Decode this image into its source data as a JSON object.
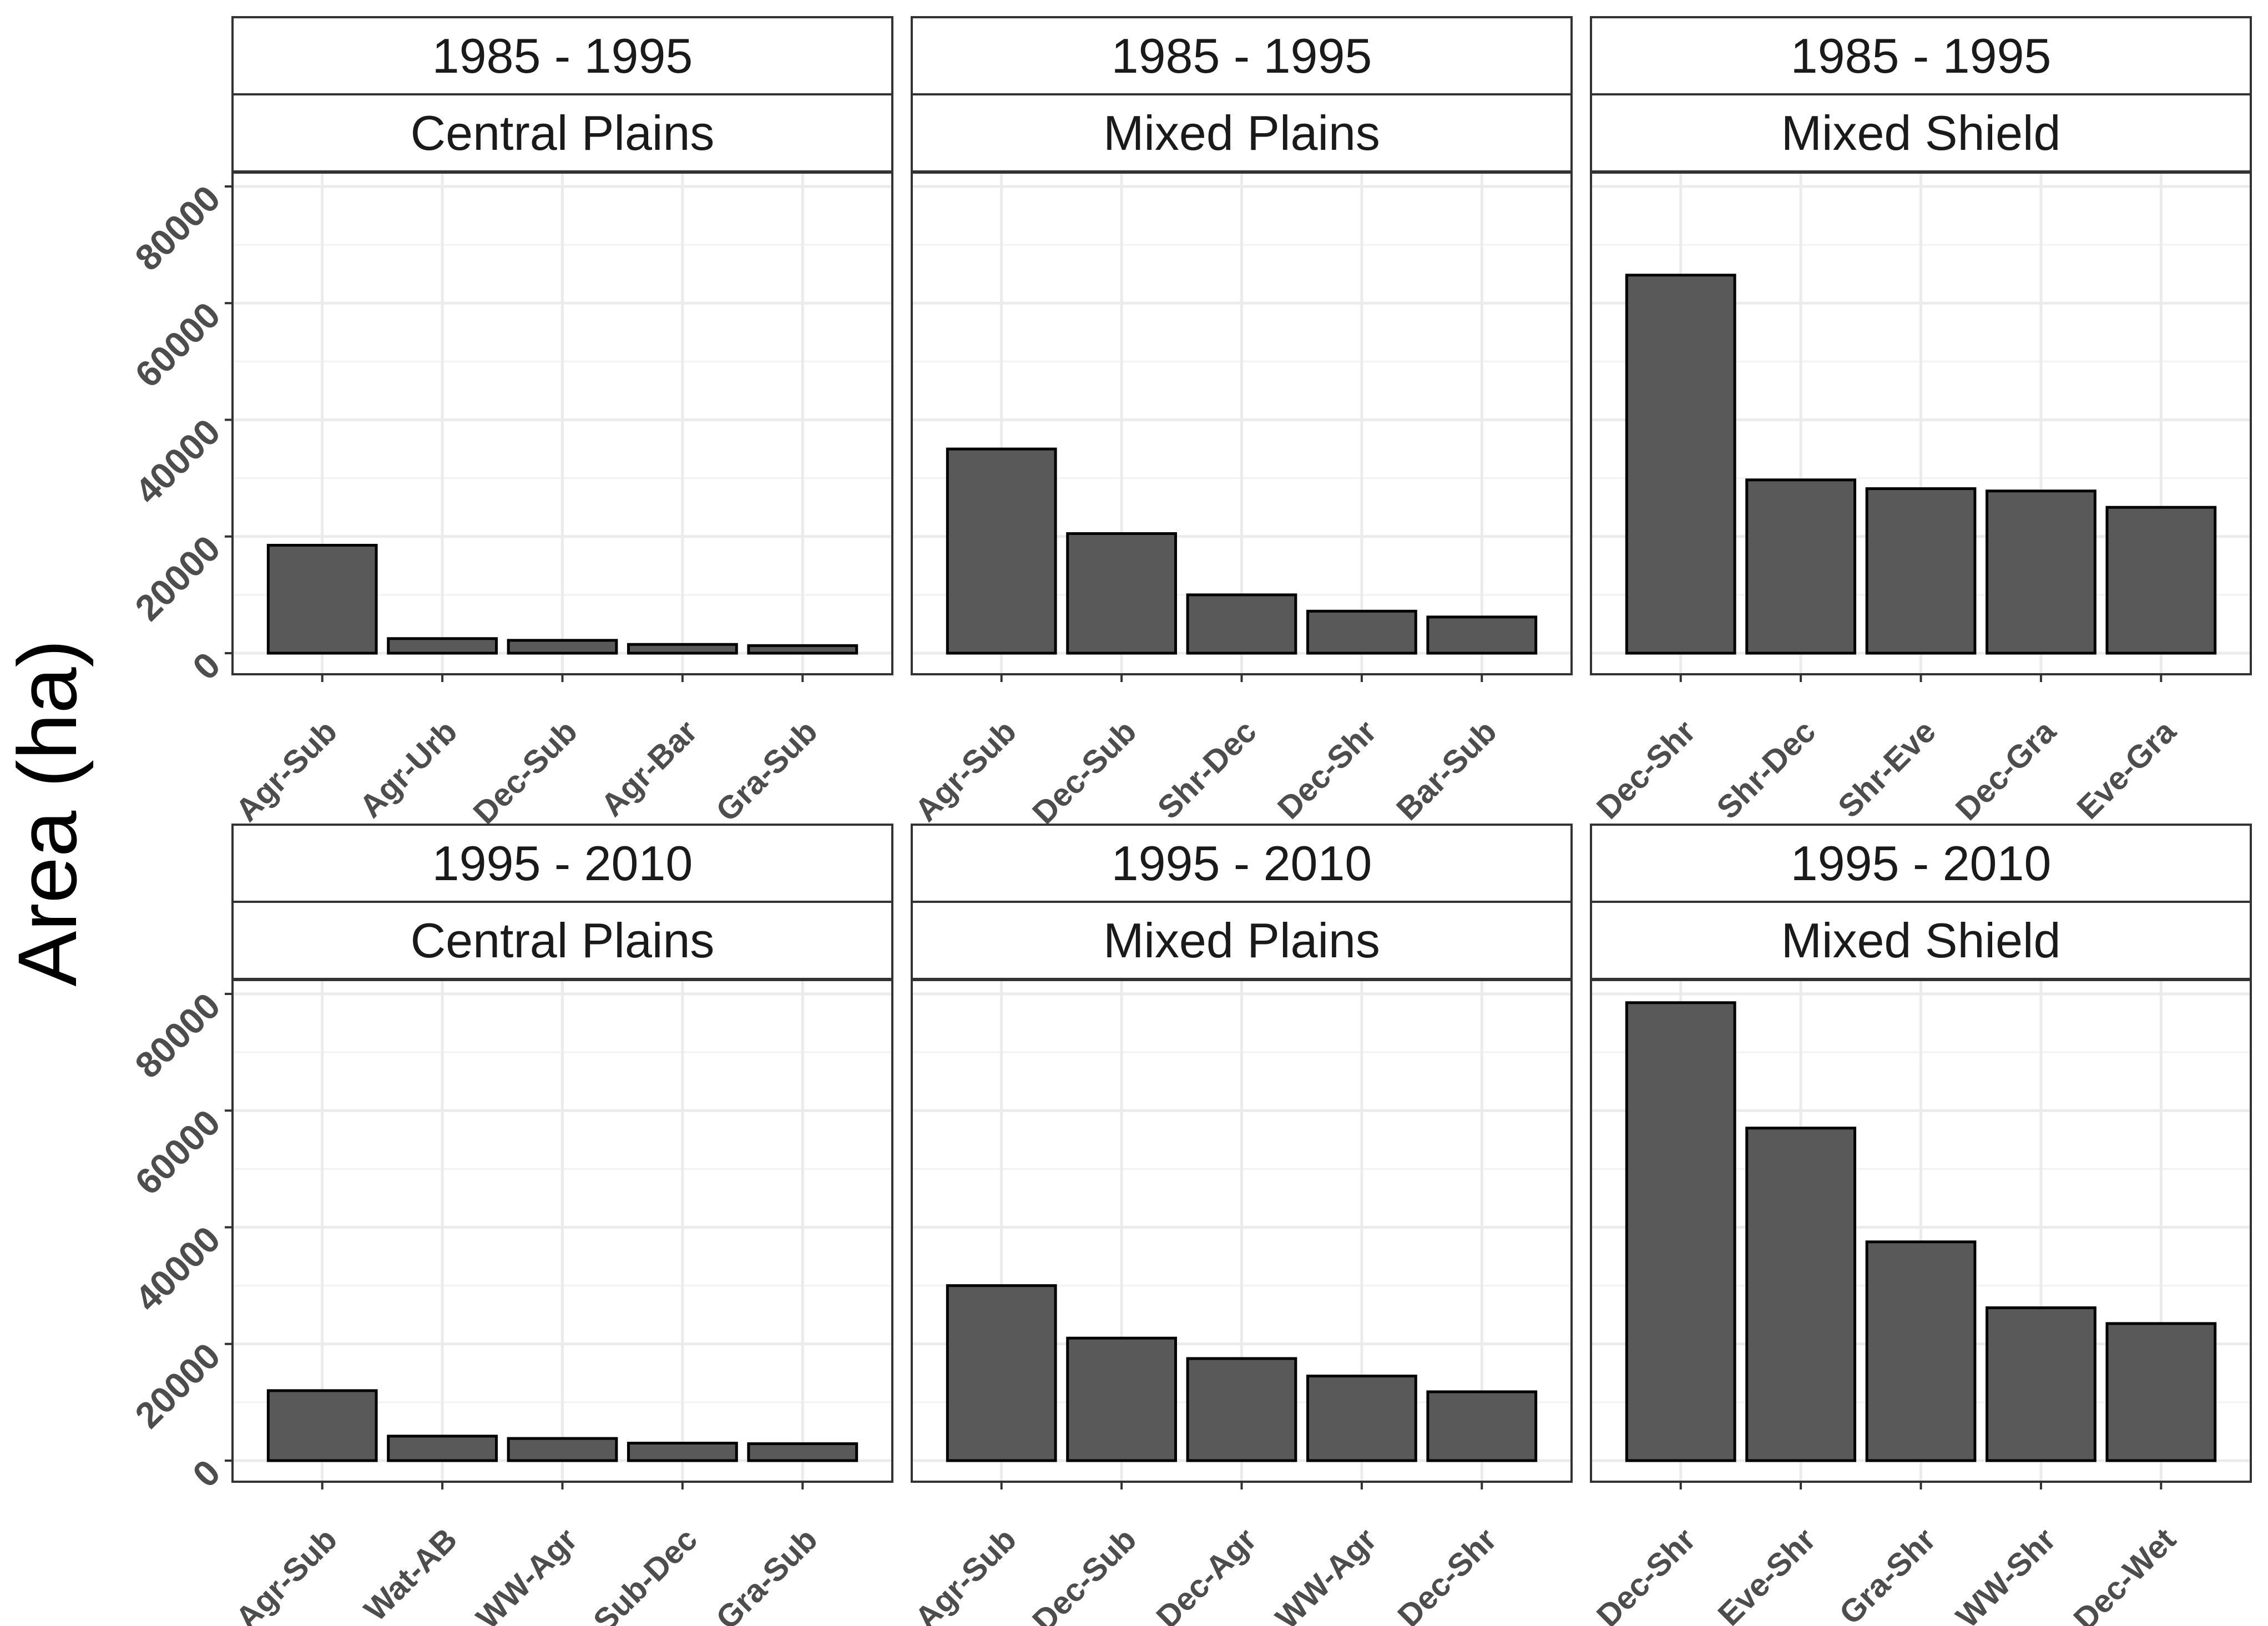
{
  "chart_data": {
    "type": "bar",
    "facet_layout": "grid",
    "ylabel": "Area (ha)",
    "xlabel": "",
    "ylim": [
      0,
      80000
    ],
    "y_ticks": [
      "0",
      "20000",
      "40000",
      "60000",
      "80000"
    ],
    "grid": true,
    "legend": "none",
    "colors": {
      "bar_fill": "#595959",
      "bar_stroke": "#000000",
      "grid": "#ebebeb",
      "panel_border": "#333333"
    },
    "panels": [
      {
        "period": "1985 - 1995",
        "region": "Central Plains",
        "categories": [
          "Agr-Sub",
          "Agr-Urb",
          "Dec-Sub",
          "Agr-Bar",
          "Gra-Sub"
        ],
        "values": [
          18500,
          2500,
          2200,
          1500,
          1300
        ]
      },
      {
        "period": "1985 - 1995",
        "region": "Mixed Plains",
        "categories": [
          "Agr-Sub",
          "Dec-Sub",
          "Shr-Dec",
          "Dec-Shr",
          "Bar-Sub"
        ],
        "values": [
          35000,
          20500,
          10000,
          7200,
          6200
        ]
      },
      {
        "period": "1985 - 1995",
        "region": "Mixed Shield",
        "categories": [
          "Dec-Shr",
          "Shr-Dec",
          "Shr-Eve",
          "Dec-Gra",
          "Eve-Gra"
        ],
        "values": [
          64800,
          29700,
          28200,
          27800,
          25000
        ]
      },
      {
        "period": "1995 - 2010",
        "region": "Central Plains",
        "categories": [
          "Agr-Sub",
          "Wat-AB",
          "WW-Agr",
          "Sub-Dec",
          "Gra-Sub"
        ],
        "values": [
          12000,
          4200,
          3800,
          3000,
          2900
        ]
      },
      {
        "period": "1995 - 2010",
        "region": "Mixed Plains",
        "categories": [
          "Agr-Sub",
          "Dec-Sub",
          "Dec-Agr",
          "WW-Agr",
          "Dec-Shr"
        ],
        "values": [
          30000,
          21000,
          17500,
          14500,
          11800
        ]
      },
      {
        "period": "1995 - 2010",
        "region": "Mixed Shield",
        "categories": [
          "Dec-Shr",
          "Eve-Shr",
          "Gra-Shr",
          "WW-Shr",
          "Dec-Wet"
        ],
        "values": [
          78500,
          57000,
          37500,
          26200,
          23500
        ]
      }
    ]
  }
}
